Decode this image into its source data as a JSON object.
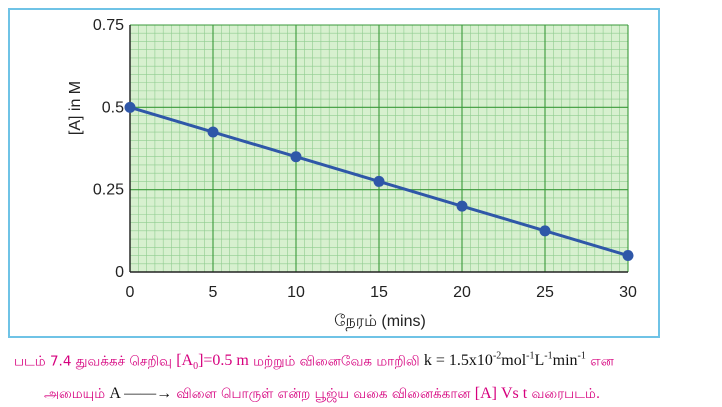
{
  "chart_data": {
    "type": "line",
    "x": [
      0,
      5,
      10,
      15,
      20,
      25,
      30
    ],
    "series": [
      {
        "values": [
          0.5,
          0.425,
          0.35,
          0.275,
          0.2,
          0.125,
          0.05
        ]
      }
    ],
    "xlabel": "நேரம் (mins)",
    "ylabel": "[A] in M",
    "xlim": [
      0,
      30
    ],
    "ylim": [
      0,
      0.75
    ],
    "xticks": [
      "0",
      "5",
      "10",
      "15",
      "20",
      "25",
      "30"
    ],
    "yticks": [
      "0",
      "0.25",
      "0.5",
      "0.75"
    ],
    "grid": true,
    "colors": {
      "line": "#2f57a8",
      "grid_major": "#3a9a3a",
      "grid_minor": "#8fcc8f",
      "plot_bg": "#d7f0cf",
      "frame": "#6fc3e6"
    }
  },
  "caption": {
    "fig_label": "படம் 7.4 துவக்கச் செறிவு",
    "a0_open": "[A",
    "a0_sub": "0",
    "a0_close": "]=0.5 m",
    "mid_text": "மற்றும் வினைவேக மாறிலி",
    "k_base": "k = 1.5x10",
    "k_exp1": "-2",
    "k_mol": "mol",
    "k_exp2": "-1",
    "k_L": "L",
    "k_exp3": "-1",
    "k_min": "min",
    "k_exp4": "-1",
    "end_line1": "என",
    "line2_start": "அமையும்",
    "reaction": "A ——→",
    "line2_mid": "விளை பொருள் என்ற பூஜ்ய வகை வினைக்கான",
    "plot_ref": "[A] Vs t",
    "line2_end": "வரைபடம்."
  }
}
